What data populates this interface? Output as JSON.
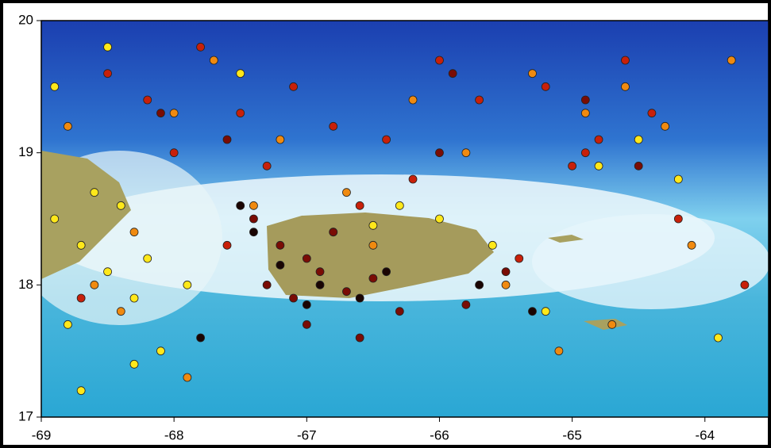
{
  "chart_data": {
    "type": "scatter",
    "xlim": [
      -69,
      -63.52
    ],
    "ylim": [
      17,
      20
    ],
    "xticks": [
      -69,
      -68,
      -67,
      -66,
      -65,
      -64
    ],
    "yticks": [
      17,
      18,
      19,
      20
    ],
    "series": [
      {
        "color": "#ffe81a",
        "x": [
          -68.9,
          -68.7,
          -68.5,
          -68.3,
          -68.6,
          -68.8,
          -68.4,
          -68.2,
          -68.9,
          -68.5,
          -68.1,
          -67.9,
          -66.8,
          -66.5,
          -66.3,
          -66.0,
          -65.6,
          -64.8,
          -64.2,
          -63.9,
          -65.2,
          -67.5,
          -68.7,
          -68.3,
          -64.5
        ],
        "values": [
          18.5,
          18.3,
          18.1,
          17.9,
          18.7,
          17.7,
          18.6,
          18.2,
          19.5,
          19.8,
          17.5,
          18.0,
          18.4,
          18.45,
          18.6,
          18.5,
          18.3,
          18.9,
          18.8,
          17.6,
          17.8,
          19.6,
          17.2,
          17.4,
          19.1
        ]
      },
      {
        "color": "#f08a10",
        "x": [
          -68.6,
          -68.3,
          -68.0,
          -67.7,
          -67.2,
          -66.7,
          -66.2,
          -65.8,
          -65.3,
          -64.9,
          -64.6,
          -64.3,
          -68.4,
          -67.9,
          -66.5,
          -65.5,
          -64.7,
          -68.8,
          -67.4,
          -65.1,
          -64.1,
          -63.8
        ],
        "values": [
          18.0,
          18.4,
          19.3,
          19.7,
          19.1,
          18.7,
          19.4,
          19.0,
          19.6,
          19.3,
          19.5,
          19.2,
          17.8,
          17.3,
          18.3,
          18.0,
          17.7,
          19.2,
          18.6,
          17.5,
          18.3,
          19.7
        ]
      },
      {
        "color": "#c8200a",
        "x": [
          -68.5,
          -68.2,
          -67.8,
          -67.5,
          -67.1,
          -66.8,
          -66.4,
          -66.0,
          -65.7,
          -65.2,
          -64.9,
          -64.6,
          -64.4,
          -64.8,
          -65.0,
          -66.2,
          -67.3,
          -68.0,
          -67.6,
          -66.6,
          -65.4,
          -64.2,
          -68.7,
          -63.7
        ],
        "values": [
          19.6,
          19.4,
          19.8,
          19.3,
          19.5,
          19.2,
          19.1,
          19.7,
          19.4,
          19.5,
          19.0,
          19.7,
          19.3,
          19.1,
          18.9,
          18.8,
          18.9,
          19.0,
          18.3,
          18.6,
          18.2,
          18.5,
          17.9,
          18.0
        ]
      },
      {
        "color": "#7a0c05",
        "x": [
          -67.3,
          -67.1,
          -66.9,
          -67.0,
          -66.7,
          -67.2,
          -66.5,
          -66.8,
          -67.4,
          -66.3,
          -65.8,
          -65.5,
          -67.6,
          -68.1,
          -66.0,
          -65.9,
          -64.9,
          -64.5,
          -67.0,
          -66.6
        ],
        "values": [
          18.0,
          17.9,
          18.1,
          18.2,
          17.95,
          18.3,
          18.05,
          18.4,
          18.5,
          17.8,
          17.85,
          18.1,
          19.1,
          19.3,
          19.0,
          19.6,
          19.4,
          18.9,
          17.7,
          17.6
        ]
      },
      {
        "color": "#1a0503",
        "x": [
          -67.2,
          -66.9,
          -67.0,
          -67.4,
          -66.6,
          -65.7,
          -65.3,
          -67.5,
          -66.4,
          -67.8
        ],
        "values": [
          18.15,
          18.0,
          17.85,
          18.4,
          17.9,
          18.0,
          17.8,
          18.6,
          18.1,
          17.6
        ]
      }
    ]
  }
}
